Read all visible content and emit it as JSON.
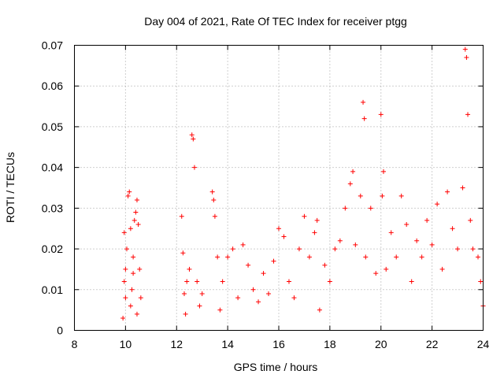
{
  "chart_data": {
    "type": "scatter",
    "title": "Day 004 of 2021, Rate Of TEC Index for receiver ptgg",
    "xlabel": "GPS time / hours",
    "ylabel": "ROTI / TECUs",
    "xlim": [
      8,
      24
    ],
    "ylim": [
      0,
      0.07
    ],
    "xticks": [
      8,
      10,
      12,
      14,
      16,
      18,
      20,
      22,
      24
    ],
    "xtick_labels": [
      "8",
      "10",
      "12",
      "14",
      "16",
      "18",
      "20",
      "22",
      "24"
    ],
    "yticks": [
      0,
      0.01,
      0.02,
      0.03,
      0.04,
      0.05,
      0.06,
      0.07
    ],
    "ytick_labels": [
      "0",
      "0.01",
      "0.02",
      "0.03",
      "0.04",
      "0.05",
      "0.06",
      "0.07"
    ],
    "grid": true,
    "marker": "+",
    "color": "#ff0000",
    "series": [
      {
        "name": "ROTI",
        "points": [
          [
            9.9,
            0.003
          ],
          [
            9.95,
            0.012
          ],
          [
            10.0,
            0.015
          ],
          [
            10.05,
            0.02
          ],
          [
            10.1,
            0.033
          ],
          [
            10.15,
            0.034
          ],
          [
            10.2,
            0.025
          ],
          [
            10.25,
            0.01
          ],
          [
            10.3,
            0.018
          ],
          [
            10.35,
            0.027
          ],
          [
            10.4,
            0.029
          ],
          [
            10.45,
            0.032
          ],
          [
            10.5,
            0.026
          ],
          [
            10.55,
            0.015
          ],
          [
            10.6,
            0.008
          ],
          [
            10.45,
            0.004
          ],
          [
            10.0,
            0.008
          ],
          [
            10.2,
            0.006
          ],
          [
            9.95,
            0.024
          ],
          [
            10.3,
            0.014
          ],
          [
            12.2,
            0.028
          ],
          [
            12.25,
            0.019
          ],
          [
            12.3,
            0.009
          ],
          [
            12.35,
            0.004
          ],
          [
            12.4,
            0.012
          ],
          [
            12.5,
            0.015
          ],
          [
            12.6,
            0.048
          ],
          [
            12.65,
            0.047
          ],
          [
            12.7,
            0.04
          ],
          [
            12.8,
            0.012
          ],
          [
            12.9,
            0.006
          ],
          [
            13.0,
            0.009
          ],
          [
            13.4,
            0.034
          ],
          [
            13.45,
            0.032
          ],
          [
            13.5,
            0.028
          ],
          [
            13.6,
            0.018
          ],
          [
            13.7,
            0.005
          ],
          [
            13.8,
            0.012
          ],
          [
            14.0,
            0.018
          ],
          [
            14.2,
            0.02
          ],
          [
            14.4,
            0.008
          ],
          [
            14.6,
            0.021
          ],
          [
            14.8,
            0.016
          ],
          [
            15.0,
            0.01
          ],
          [
            15.2,
            0.007
          ],
          [
            15.4,
            0.014
          ],
          [
            15.6,
            0.009
          ],
          [
            15.8,
            0.017
          ],
          [
            16.0,
            0.025
          ],
          [
            16.2,
            0.023
          ],
          [
            16.4,
            0.012
          ],
          [
            16.6,
            0.008
          ],
          [
            16.8,
            0.02
          ],
          [
            17.0,
            0.028
          ],
          [
            17.2,
            0.018
          ],
          [
            17.4,
            0.024
          ],
          [
            17.5,
            0.027
          ],
          [
            17.6,
            0.005
          ],
          [
            17.8,
            0.016
          ],
          [
            18.0,
            0.012
          ],
          [
            18.2,
            0.02
          ],
          [
            18.4,
            0.022
          ],
          [
            18.6,
            0.03
          ],
          [
            18.8,
            0.036
          ],
          [
            18.9,
            0.039
          ],
          [
            19.0,
            0.021
          ],
          [
            19.2,
            0.033
          ],
          [
            19.3,
            0.056
          ],
          [
            19.35,
            0.052
          ],
          [
            19.4,
            0.018
          ],
          [
            19.6,
            0.03
          ],
          [
            19.8,
            0.014
          ],
          [
            20.0,
            0.053
          ],
          [
            20.05,
            0.033
          ],
          [
            20.1,
            0.039
          ],
          [
            20.2,
            0.015
          ],
          [
            20.4,
            0.024
          ],
          [
            20.6,
            0.018
          ],
          [
            20.8,
            0.033
          ],
          [
            21.0,
            0.026
          ],
          [
            21.2,
            0.012
          ],
          [
            21.4,
            0.022
          ],
          [
            21.6,
            0.018
          ],
          [
            21.8,
            0.027
          ],
          [
            22.0,
            0.021
          ],
          [
            22.2,
            0.031
          ],
          [
            22.4,
            0.015
          ],
          [
            22.6,
            0.034
          ],
          [
            22.8,
            0.025
          ],
          [
            23.0,
            0.02
          ],
          [
            23.2,
            0.035
          ],
          [
            23.3,
            0.069
          ],
          [
            23.35,
            0.067
          ],
          [
            23.4,
            0.053
          ],
          [
            23.5,
            0.027
          ],
          [
            23.6,
            0.02
          ],
          [
            23.8,
            0.018
          ],
          [
            23.9,
            0.012
          ],
          [
            24.0,
            0.006
          ]
        ]
      }
    ]
  }
}
